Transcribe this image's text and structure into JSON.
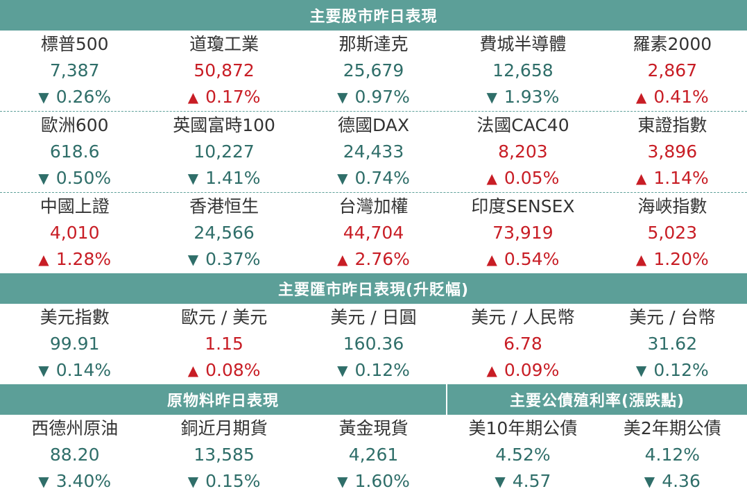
{
  "colors": {
    "header_bg": "#5c9f98",
    "up": "#c81d25",
    "down": "#2f6e69",
    "text": "#333333"
  },
  "stock_section": {
    "title": "主要股市昨日表現",
    "rows": [
      [
        {
          "name": "標普500",
          "value": "7,387",
          "arrow": "▼",
          "change": "0.26%",
          "dir": "down"
        },
        {
          "name": "道瓊工業",
          "value": "50,872",
          "arrow": "▲",
          "change": "0.17%",
          "dir": "up"
        },
        {
          "name": "那斯達克",
          "value": "25,679",
          "arrow": "▼",
          "change": "0.97%",
          "dir": "down"
        },
        {
          "name": "費城半導體",
          "value": "12,658",
          "arrow": "▼",
          "change": "1.93%",
          "dir": "down"
        },
        {
          "name": "羅素2000",
          "value": "2,867",
          "arrow": "▲",
          "change": "0.41%",
          "dir": "up"
        }
      ],
      [
        {
          "name": "歐洲600",
          "value": "618.6",
          "arrow": "▼",
          "change": "0.50%",
          "dir": "down"
        },
        {
          "name": "英國富時100",
          "value": "10,227",
          "arrow": "▼",
          "change": "1.41%",
          "dir": "down"
        },
        {
          "name": "德國DAX",
          "value": "24,433",
          "arrow": "▼",
          "change": "0.74%",
          "dir": "down"
        },
        {
          "name": "法國CAC40",
          "value": "8,203",
          "arrow": "▲",
          "change": "0.05%",
          "dir": "up"
        },
        {
          "name": "東證指數",
          "value": "3,896",
          "arrow": "▲",
          "change": "1.14%",
          "dir": "up"
        }
      ],
      [
        {
          "name": "中國上證",
          "value": "4,010",
          "arrow": "▲",
          "change": "1.28%",
          "dir": "up"
        },
        {
          "name": "香港恒生",
          "value": "24,566",
          "arrow": "▼",
          "change": "0.37%",
          "dir": "down"
        },
        {
          "name": "台灣加權",
          "value": "44,704",
          "arrow": "▲",
          "change": "2.76%",
          "dir": "up"
        },
        {
          "name": "印度SENSEX",
          "value": "73,919",
          "arrow": "▲",
          "change": "0.54%",
          "dir": "up"
        },
        {
          "name": "海峽指數",
          "value": "5,023",
          "arrow": "▲",
          "change": "1.20%",
          "dir": "up"
        }
      ]
    ]
  },
  "fx_section": {
    "title": "主要匯市昨日表現(升貶幅)",
    "items": [
      {
        "name": "美元指數",
        "value": "99.91",
        "arrow": "▼",
        "change": "0.14%",
        "dir": "down"
      },
      {
        "name": "歐元 / 美元",
        "value": "1.15",
        "arrow": "▲",
        "change": "0.08%",
        "dir": "up"
      },
      {
        "name": "美元 / 日圓",
        "value": "160.36",
        "arrow": "▼",
        "change": "0.12%",
        "dir": "down"
      },
      {
        "name": "美元 / 人民幣",
        "value": "6.78",
        "arrow": "▲",
        "change": "0.09%",
        "dir": "up"
      },
      {
        "name": "美元 / 台幣",
        "value": "31.62",
        "arrow": "▼",
        "change": "0.12%",
        "dir": "down"
      }
    ]
  },
  "commodity_section": {
    "title": "原物料昨日表現",
    "items": [
      {
        "name": "西德州原油",
        "value": "88.20",
        "arrow": "▼",
        "change": "3.40%",
        "dir": "down"
      },
      {
        "name": "銅近月期貨",
        "value": "13,585",
        "arrow": "▼",
        "change": "0.15%",
        "dir": "down"
      },
      {
        "name": "黃金現貨",
        "value": "4,261",
        "arrow": "▼",
        "change": "1.60%",
        "dir": "down"
      }
    ]
  },
  "bond_section": {
    "title": "主要公債殖利率(漲跌點)",
    "items": [
      {
        "name": "美10年期公債",
        "value": "4.52%",
        "arrow": "▼",
        "change": "4.57",
        "dir": "down"
      },
      {
        "name": "美2年期公債",
        "value": "4.12%",
        "arrow": "▼",
        "change": "4.36",
        "dir": "down"
      }
    ]
  }
}
